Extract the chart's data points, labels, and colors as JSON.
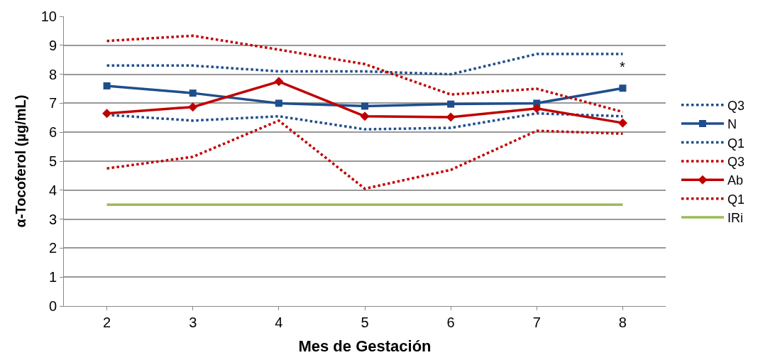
{
  "chart_data": {
    "type": "line",
    "xlabel": "Mes de Gestación",
    "ylabel": "α-Tocoferol (µg/mL)",
    "x": [
      2,
      3,
      4,
      5,
      6,
      7,
      8
    ],
    "xlim": [
      1.5,
      8.5
    ],
    "xticks": [
      2,
      3,
      4,
      5,
      6,
      7,
      8
    ],
    "ylim": [
      0,
      10
    ],
    "yticks": [
      0,
      1,
      2,
      3,
      4,
      5,
      6,
      7,
      8,
      9,
      10
    ],
    "grid": "y",
    "legend": "right",
    "series": [
      {
        "name": "Q3",
        "color": "#1f4e8c",
        "line_style": "dotted",
        "marker": "none",
        "values": [
          8.3,
          8.3,
          8.1,
          8.1,
          8.0,
          8.7,
          8.7
        ]
      },
      {
        "name": "N",
        "color": "#1f4e8c",
        "line_style": "solid",
        "marker": "square",
        "values": [
          7.6,
          7.35,
          7.0,
          6.9,
          6.97,
          7.0,
          7.52
        ]
      },
      {
        "name": "Q1",
        "color": "#1f4e8c",
        "line_style": "dotted",
        "marker": "none",
        "values": [
          6.6,
          6.4,
          6.55,
          6.1,
          6.15,
          6.65,
          6.55
        ]
      },
      {
        "name": "Q3",
        "color": "#c00000",
        "line_style": "dotted",
        "marker": "none",
        "values": [
          9.15,
          9.33,
          8.85,
          8.35,
          7.3,
          7.5,
          6.7
        ]
      },
      {
        "name": "Ab",
        "color": "#c00000",
        "line_style": "solid",
        "marker": "diamond",
        "values": [
          6.65,
          6.87,
          7.75,
          6.55,
          6.52,
          6.82,
          6.32
        ]
      },
      {
        "name": "Q1",
        "color": "#c00000",
        "line_style": "dotted",
        "marker": "none",
        "values": [
          4.75,
          5.15,
          6.4,
          4.05,
          4.7,
          6.05,
          5.95
        ]
      },
      {
        "name": "IRi",
        "color": "#9bbb59",
        "line_style": "solid",
        "marker": "none",
        "values": [
          3.5,
          3.5,
          3.5,
          3.5,
          3.5,
          3.5,
          3.5
        ]
      }
    ],
    "annotations": [
      "*"
    ]
  }
}
